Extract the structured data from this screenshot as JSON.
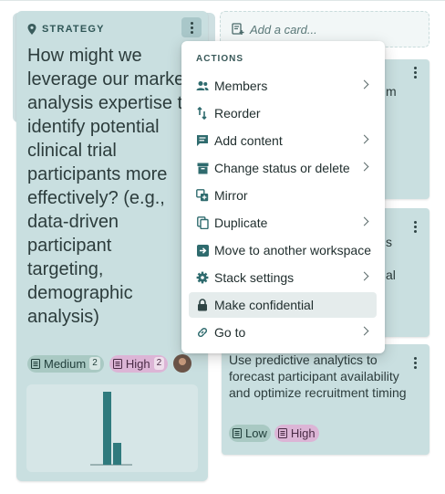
{
  "stack": {
    "label": "STRATEGY",
    "title": "How might we\nleverage our market\nanalysis expertise to\nidentify potential\nclinical trial\nparticipants more\neffectively? (e.g.,\ndata-driven\nparticipant\ntargeting,\ndemographic\nanalysis)",
    "tags": [
      {
        "label": "Medium",
        "count": "2",
        "color": "#a9c9c3"
      },
      {
        "label": "High",
        "count": "2",
        "color": "#dcb5d6"
      }
    ],
    "chart_values": [
      80,
      24
    ]
  },
  "add_card": {
    "label": "Add a card..."
  },
  "cards": [
    {
      "text": "m"
    },
    {
      "text": "s\n\nal"
    },
    {
      "text": "Use predictive analytics to forecast participant availability and optimize recruitment timing",
      "tags": [
        {
          "label": "Low"
        },
        {
          "label": "High"
        }
      ]
    }
  ],
  "menu": {
    "title": "ACTIONS",
    "items": [
      {
        "label": "Members",
        "icon": "members-icon",
        "submenu": true
      },
      {
        "label": "Reorder",
        "icon": "reorder-icon",
        "submenu": false
      },
      {
        "label": "Add content",
        "icon": "add-content-icon",
        "submenu": true
      },
      {
        "label": "Change status or delete",
        "icon": "archive-icon",
        "submenu": true
      },
      {
        "label": "Mirror",
        "icon": "mirror-icon",
        "submenu": false
      },
      {
        "label": "Duplicate",
        "icon": "duplicate-icon",
        "submenu": true
      },
      {
        "label": "Move to another workspace",
        "icon": "move-icon",
        "submenu": false
      },
      {
        "label": "Stack settings",
        "icon": "gear-icon",
        "submenu": true
      },
      {
        "label": "Make confidential",
        "icon": "lock-icon",
        "submenu": false
      },
      {
        "label": "Go to",
        "icon": "link-icon",
        "submenu": true
      }
    ]
  },
  "colors": {
    "card": "#c9dfe0",
    "accent": "#2f7a7d"
  }
}
